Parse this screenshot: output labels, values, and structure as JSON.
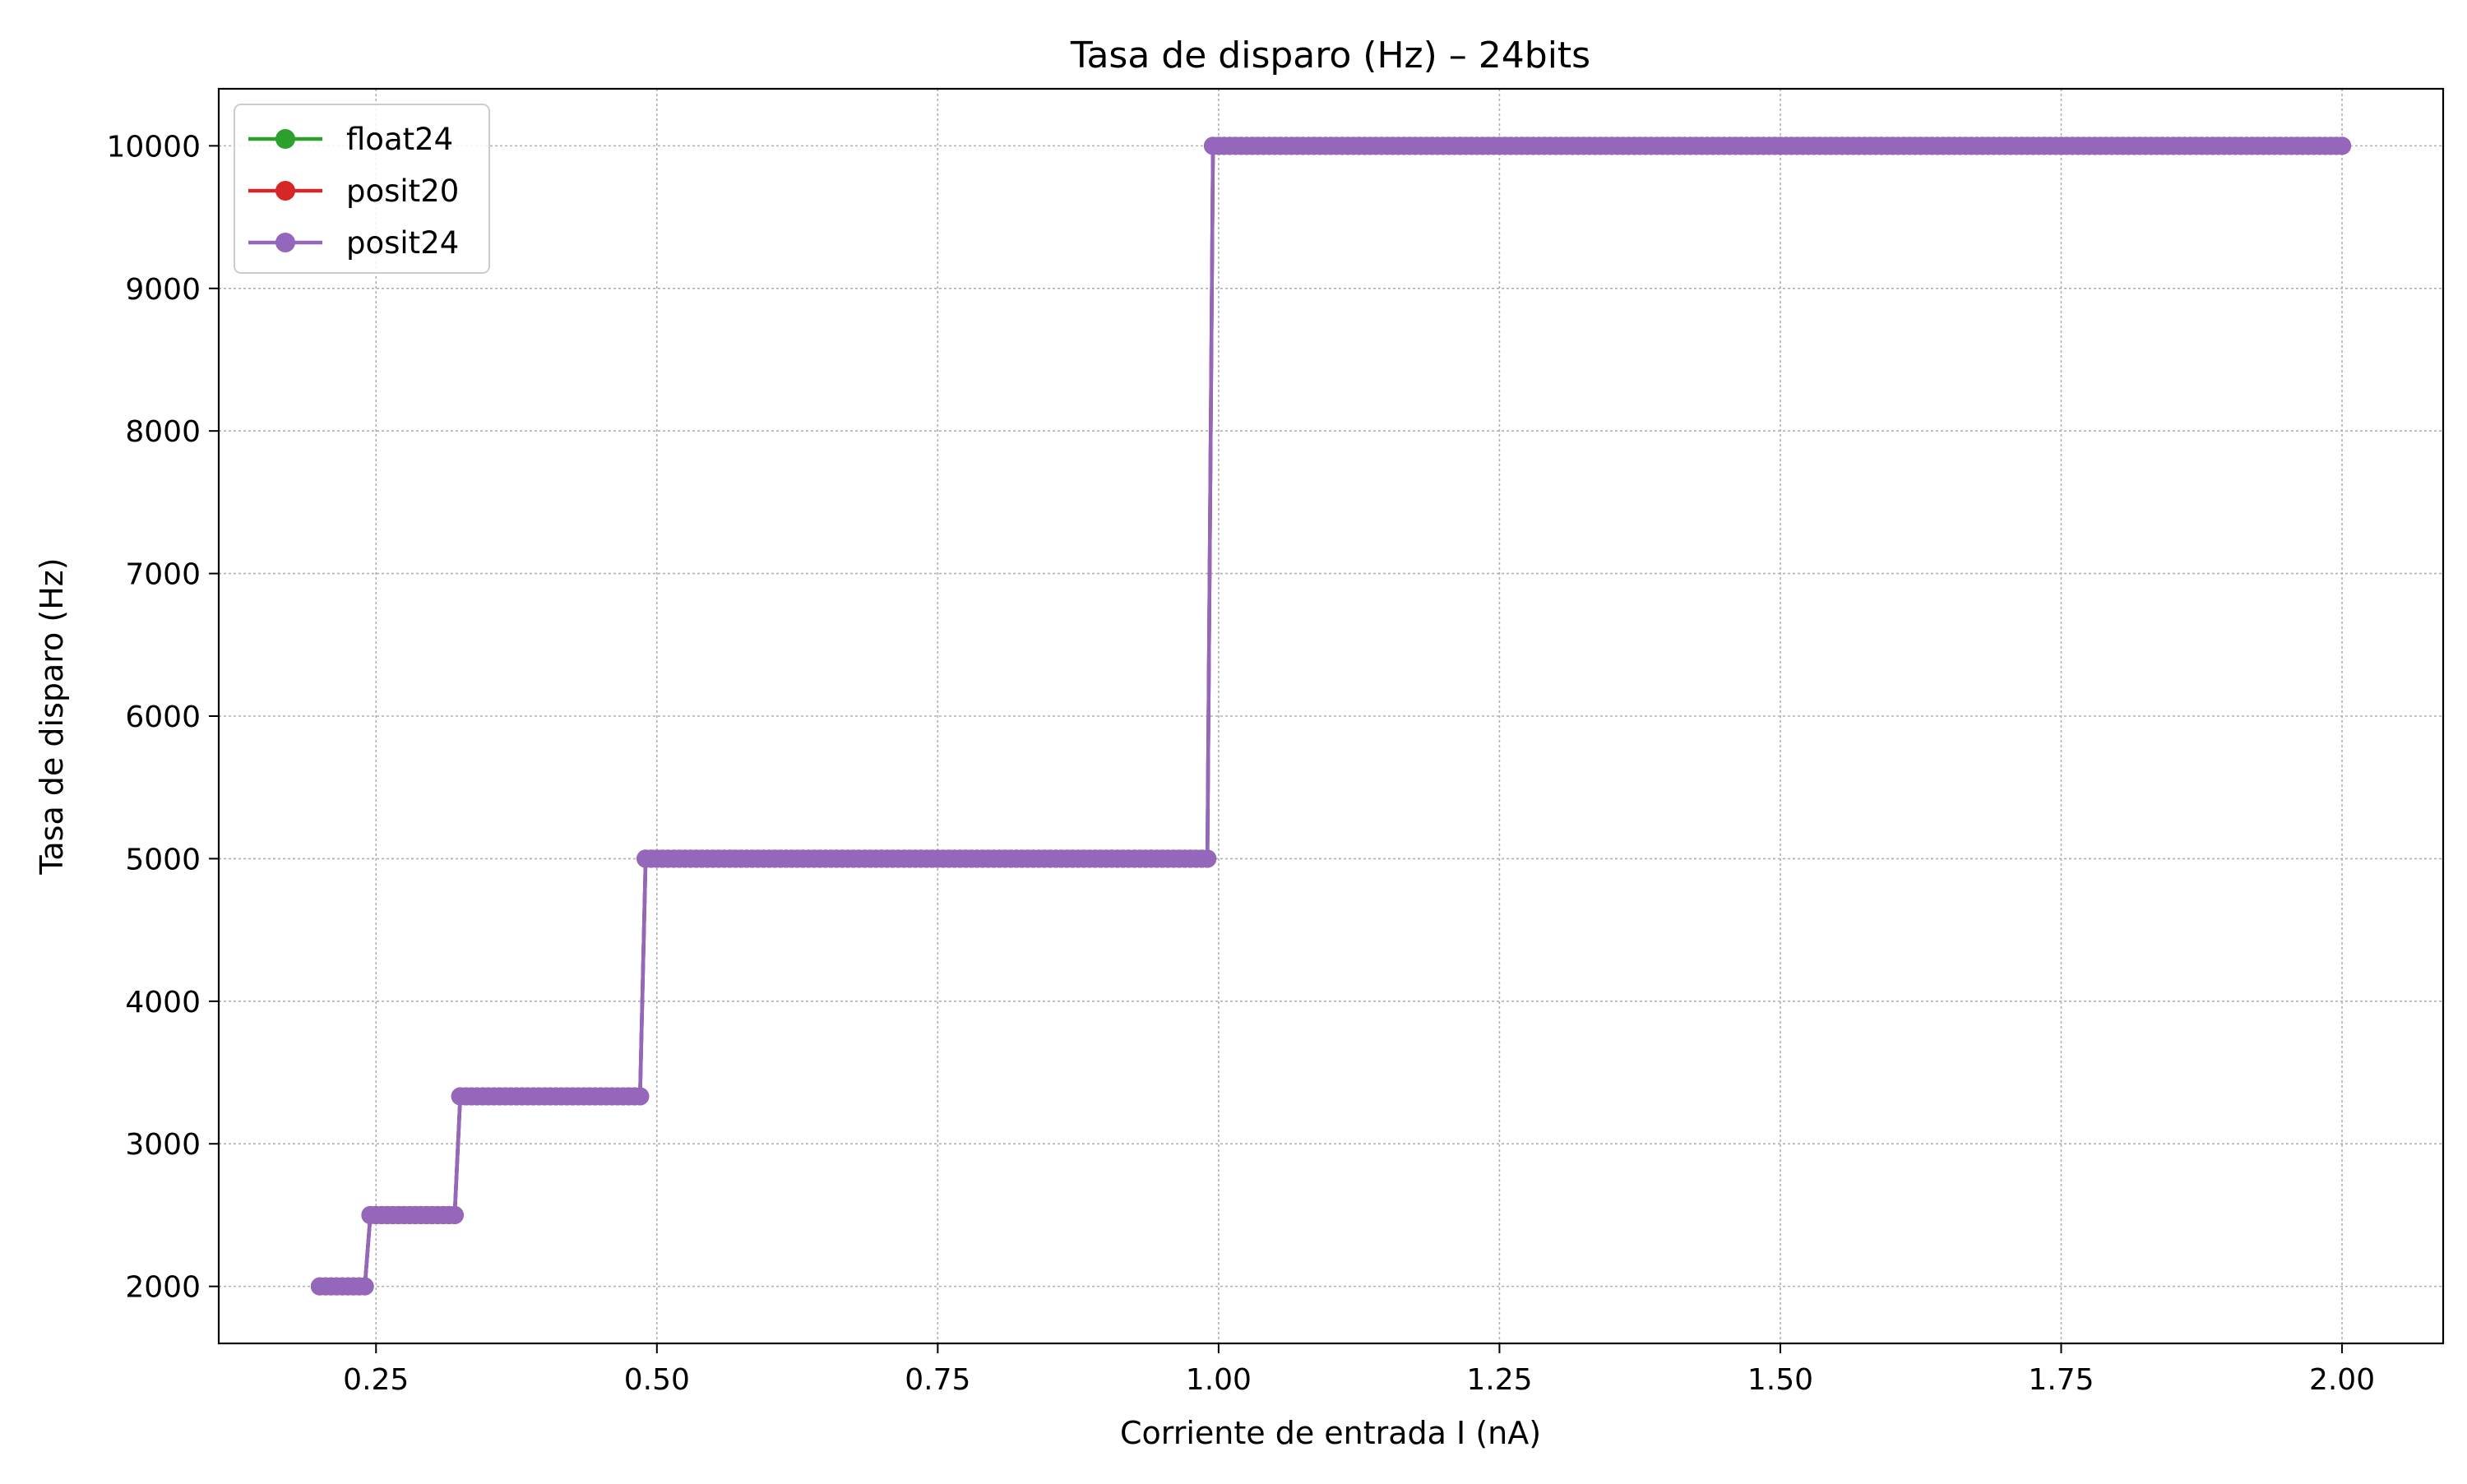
{
  "chart_data": {
    "type": "line",
    "title": "Tasa de disparo (Hz) – 24bits",
    "xlabel": "Corriente de entrada I (nA)",
    "ylabel": "Tasa de disparo (Hz)",
    "xlim": [
      0.11,
      2.09
    ],
    "ylim": [
      1600,
      10400
    ],
    "xticks": [
      0.25,
      0.5,
      0.75,
      1.0,
      1.25,
      1.5,
      1.75,
      2.0
    ],
    "xtick_labels": [
      "0.25",
      "0.50",
      "0.75",
      "1.00",
      "1.25",
      "1.50",
      "1.75",
      "2.00"
    ],
    "yticks": [
      2000,
      3000,
      4000,
      5000,
      6000,
      7000,
      8000,
      9000,
      10000
    ],
    "ytick_labels": [
      "2000",
      "3000",
      "4000",
      "5000",
      "6000",
      "7000",
      "8000",
      "9000",
      "10000"
    ],
    "grid": true,
    "legend_position": "upper-left",
    "x_step": 0.005,
    "x_range": [
      0.2,
      2.0
    ],
    "step_levels": [
      {
        "x_from": 0.2,
        "x_to": 0.24,
        "y": 2000
      },
      {
        "x_from": 0.245,
        "x_to": 0.32,
        "y": 2500
      },
      {
        "x_from": 0.325,
        "x_to": 0.485,
        "y": 3333
      },
      {
        "x_from": 0.49,
        "x_to": 0.99,
        "y": 5000
      },
      {
        "x_from": 0.995,
        "x_to": 2.0,
        "y": 10000
      }
    ],
    "series": [
      {
        "name": "float24",
        "color": "#2ca02c"
      },
      {
        "name": "posit20",
        "color": "#d62728"
      },
      {
        "name": "posit24",
        "color": "#9467bd"
      }
    ]
  }
}
